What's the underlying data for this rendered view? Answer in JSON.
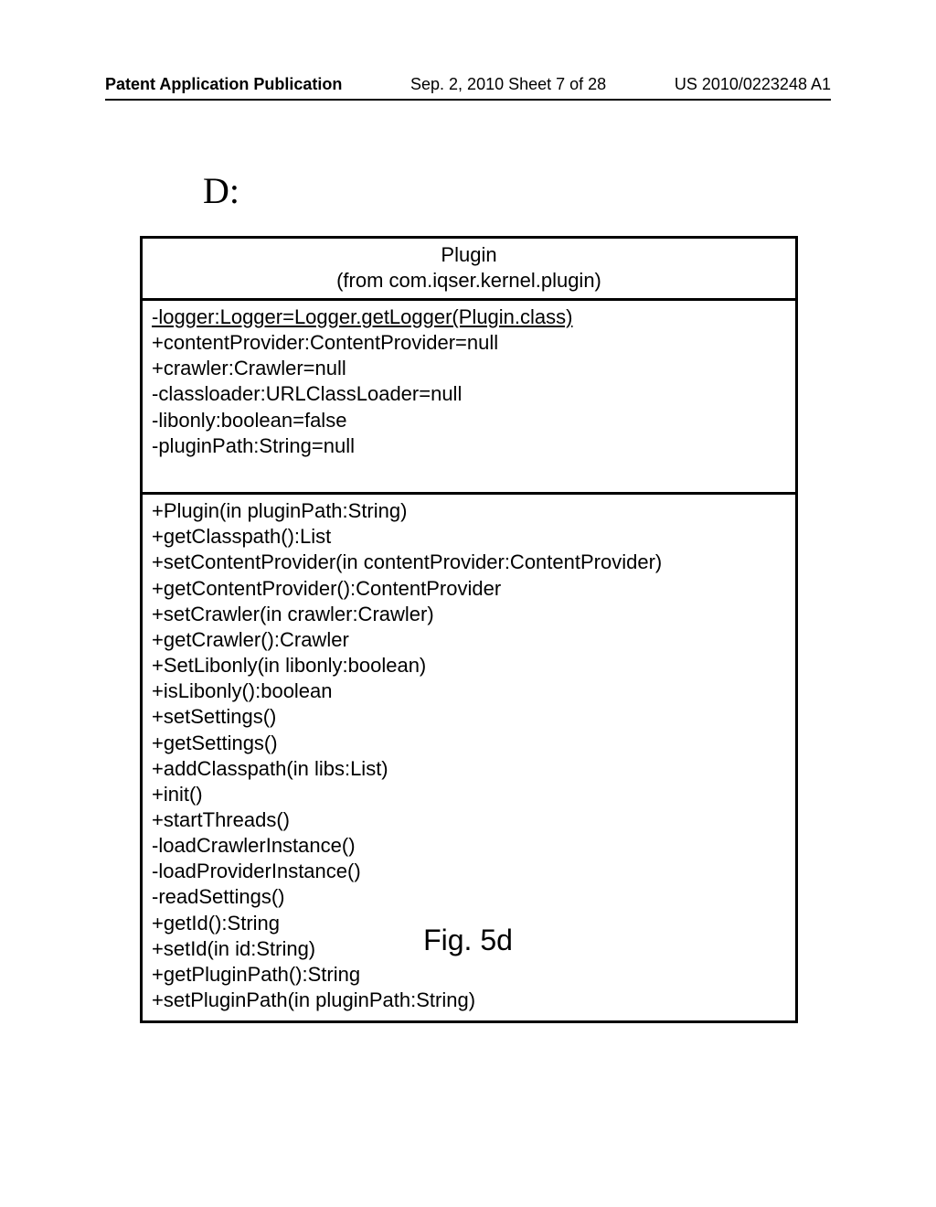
{
  "header": {
    "left": "Patent Application Publication",
    "mid": "Sep. 2, 2010  Sheet 7 of 28",
    "right": "US 2010/0223248 A1"
  },
  "section_label": "D:",
  "uml": {
    "class_name": "Plugin",
    "package_line": "(from com.iqser.kernel.plugin)",
    "attributes": [
      {
        "text": "-logger:Logger=Logger.getLogger(Plugin.class)",
        "static": true
      },
      {
        "text": "+contentProvider:ContentProvider=null",
        "static": false
      },
      {
        "text": "+crawler:Crawler=null",
        "static": false
      },
      {
        "text": "-classloader:URLClassLoader=null",
        "static": false
      },
      {
        "text": "-libonly:boolean=false",
        "static": false
      },
      {
        "text": "-pluginPath:String=null",
        "static": false
      }
    ],
    "operations": [
      "+Plugin(in pluginPath:String)",
      "+getClasspath():List",
      "+setContentProvider(in contentProvider:ContentProvider)",
      "+getContentProvider():ContentProvider",
      "+setCrawler(in crawler:Crawler)",
      "+getCrawler():Crawler",
      "+SetLibonly(in libonly:boolean)",
      "+isLibonly():boolean",
      "+setSettings()",
      "+getSettings()",
      "+addClasspath(in libs:List)",
      "+init()",
      "+startThreads()",
      "-loadCrawlerInstance()",
      "-loadProviderInstance()",
      "-readSettings()",
      "+getId():String",
      "+setId(in id:String)",
      "+getPluginPath():String",
      "+setPluginPath(in pluginPath:String)"
    ]
  },
  "figure_caption": "Fig. 5d",
  "colors": {
    "background": "#ffffff",
    "text": "#000000",
    "border": "#000000"
  }
}
